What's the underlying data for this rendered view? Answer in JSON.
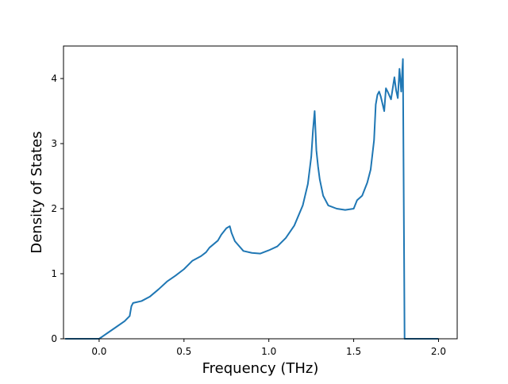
{
  "chart_data": {
    "type": "line",
    "title": "",
    "xlabel": "Frequency (THz)",
    "ylabel": "Density of States",
    "xlim": [
      -0.21,
      2.11
    ],
    "ylim": [
      0,
      4.5
    ],
    "x_ticks": [
      0.0,
      0.5,
      1.0,
      1.5,
      2.0
    ],
    "x_tick_labels": [
      "0.0",
      "0.5",
      "1.0",
      "1.5",
      "2.0"
    ],
    "y_ticks": [
      0,
      1,
      2,
      3,
      4
    ],
    "y_tick_labels": [
      "0",
      "1",
      "2",
      "3",
      "4"
    ],
    "grid": false,
    "series": [
      {
        "color": "#1f77b4",
        "x": [
          -0.2,
          0.0,
          0.05,
          0.1,
          0.15,
          0.18,
          0.19,
          0.2,
          0.25,
          0.3,
          0.35,
          0.4,
          0.45,
          0.5,
          0.55,
          0.6,
          0.63,
          0.65,
          0.7,
          0.72,
          0.75,
          0.77,
          0.78,
          0.8,
          0.85,
          0.9,
          0.95,
          1.0,
          1.05,
          1.1,
          1.15,
          1.2,
          1.23,
          1.25,
          1.26,
          1.27,
          1.28,
          1.29,
          1.3,
          1.32,
          1.35,
          1.4,
          1.45,
          1.5,
          1.52,
          1.55,
          1.58,
          1.6,
          1.62,
          1.63,
          1.64,
          1.65,
          1.66,
          1.68,
          1.69,
          1.7,
          1.72,
          1.74,
          1.75,
          1.76,
          1.77,
          1.78,
          1.79,
          1.8,
          1.805,
          1.81,
          1.82,
          1.83,
          2.0
        ],
        "y": [
          0.0,
          0.0,
          0.09,
          0.18,
          0.27,
          0.35,
          0.5,
          0.55,
          0.58,
          0.65,
          0.76,
          0.88,
          0.97,
          1.07,
          1.2,
          1.27,
          1.33,
          1.4,
          1.51,
          1.6,
          1.7,
          1.73,
          1.63,
          1.5,
          1.35,
          1.32,
          1.31,
          1.36,
          1.42,
          1.55,
          1.74,
          2.05,
          2.38,
          2.8,
          3.2,
          3.5,
          2.9,
          2.65,
          2.45,
          2.2,
          2.05,
          2.0,
          1.98,
          2.0,
          2.13,
          2.2,
          2.4,
          2.6,
          3.05,
          3.6,
          3.75,
          3.8,
          3.72,
          3.5,
          3.85,
          3.8,
          3.68,
          4.02,
          3.82,
          3.7,
          4.15,
          3.8,
          4.3,
          0.0,
          0.0,
          0.0,
          0.0,
          0.0,
          0.0
        ]
      }
    ]
  }
}
